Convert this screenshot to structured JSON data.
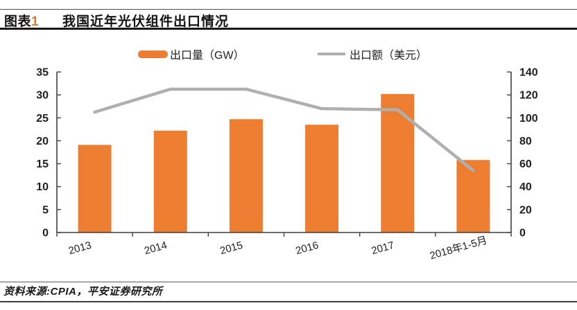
{
  "header": {
    "figure_label": "图表",
    "figure_number": "1",
    "title": "我国近年光伏组件出口情况"
  },
  "legend": {
    "bar_label": "出口量（GW）",
    "line_label": "出口额（美元）"
  },
  "chart_data": {
    "type": "bar+line",
    "title": "我国近年光伏组件出口情况",
    "categories": [
      "2013",
      "2014",
      "2015",
      "2016",
      "2017",
      "2018年1-5月"
    ],
    "series": [
      {
        "name": "出口量（GW）",
        "type": "bar",
        "axis": "left",
        "color": "#ED7D31",
        "values": [
          19.1,
          22.2,
          24.7,
          23.5,
          30.2,
          15.8
        ]
      },
      {
        "name": "出口额（美元）",
        "type": "line",
        "axis": "right",
        "color": "#AFAFAF",
        "values": [
          105,
          125,
          125,
          108,
          107,
          54
        ]
      }
    ],
    "left_axis": {
      "min": 0,
      "max": 35,
      "step": 5,
      "ticks": [
        "35",
        "30",
        "25",
        "20",
        "15",
        "10",
        "5",
        "0"
      ]
    },
    "right_axis": {
      "min": 0,
      "max": 140,
      "step": 20,
      "ticks": [
        "140",
        "120",
        "100",
        "80",
        "60",
        "40",
        "20",
        "0"
      ]
    },
    "grid": false,
    "legend_position": "top",
    "xlabel": "",
    "ylabel": ""
  },
  "footer": {
    "source": "资料来源:CPIA，平安证券研究所"
  },
  "colors": {
    "bar": "#ED7D31",
    "line": "#AFAFAF",
    "accent_number": "#E87722",
    "axis_text": "#1F1F1F",
    "axis_line": "#3F3F3F"
  }
}
